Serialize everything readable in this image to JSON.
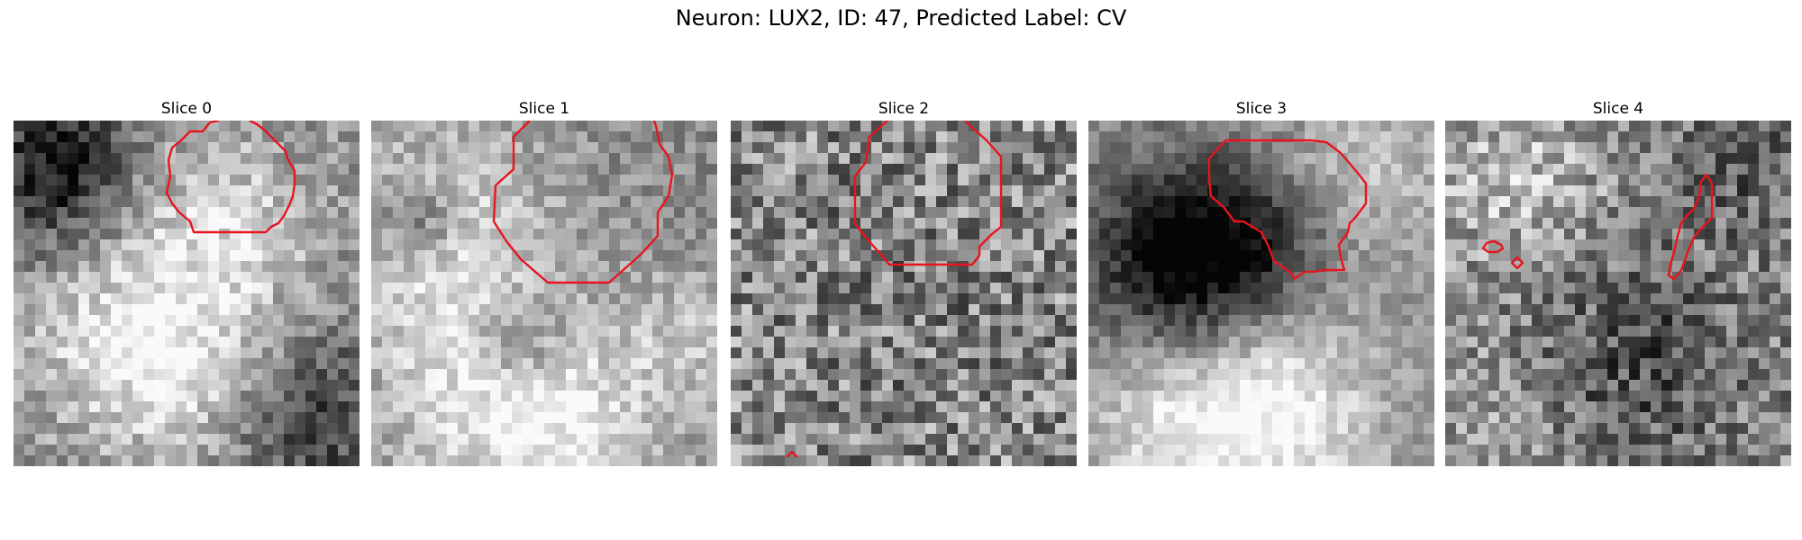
{
  "figure": {
    "title": "Neuron: LUX2, ID: 47, Predicted Label: CV"
  },
  "colors": {
    "contour": "#e8141e",
    "background": "#ffffff"
  },
  "slices": [
    {
      "title": "Slice 0"
    },
    {
      "title": "Slice 1"
    },
    {
      "title": "Slice 2"
    },
    {
      "title": "Slice 3"
    },
    {
      "title": "Slice 4"
    }
  ]
}
